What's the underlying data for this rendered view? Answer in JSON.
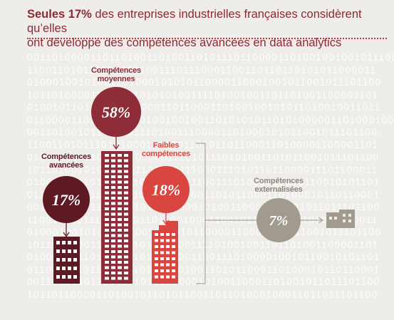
{
  "title": {
    "line1_prefix": "Seules 17% ",
    "line1_rest": "des entreprises industrielles françaises considèrent qu’elles",
    "line2": "ont développé des compétences avancées en data analytics"
  },
  "binary_text": [
    "00110100001101101001101001101011101100001101001001001011100",
    "11001101011100100010011101110001100110110110101011000011",
    "01000100101001101000101010110000110001001011001011101100",
    "10110100001101101101010100111101001001101101001100001101",
    "01001011010101101000011011000110100100101011010010011011",
    "01100001101100101101001001001101010101101010000011010001000",
    "00110100101100110111010011100001101000101011001011101100",
    "11001101011101010001101001101011011000110100001100001101",
    "01000010011010101000001110101110101001101011001011101100",
    "10110100101010010110101011100011101011011000011101100011",
    "01000110110101101101010000110011101000010010110010101101",
    "01100001101100101101001001001101011000110100010110110001",
    "00110100101100110101010100010100110001101001011011101100",
    "11001101011100010011011001000110010110110110101011000011",
    "01000100101001101000101010110000110001001011001011101100",
    "10110100001101101101010100111101001001101101001100001101",
    "01000110110101101101010000110011101000010010110010101101",
    "01100001101100101101001001001101011000110100010110110001",
    "00110100101100110101010100010100110001101001011011101100",
    "10110110000110100101101011001101101000100011011011101100"
  ],
  "colors": {
    "background": "#efedea",
    "title": "#8a2a32",
    "moyennes": "#8e2c37",
    "avancees": "#5e1a22",
    "faibles": "#d9453f",
    "externalisees": "#a19a8e"
  },
  "chart_data": {
    "type": "infographic-bubbles",
    "title": "Seules 17% des entreprises industrielles françaises considèrent qu’elles ont développé des compétences avancées en data analytics",
    "categories": [
      "Compétences avancées",
      "Compétences moyennes",
      "Faibles compétences",
      "Compétences externalisées"
    ],
    "values": [
      17,
      58,
      18,
      7
    ],
    "labels": [
      "17%",
      "58%",
      "18%",
      "7%"
    ],
    "items": [
      {
        "label_lines": [
          "Compétences",
          "avancées"
        ],
        "value": 17,
        "text": "17%",
        "color": "#5e1a22",
        "icon": "building-icon"
      },
      {
        "label_lines": [
          "Compétences",
          "moyennes"
        ],
        "value": 58,
        "text": "58%",
        "color": "#8e2c37",
        "icon": "skyscraper-icon"
      },
      {
        "label_lines": [
          "Faibles",
          "compétences"
        ],
        "value": 18,
        "text": "18%",
        "color": "#d9453f",
        "icon": "building-icon"
      },
      {
        "label_lines": [
          "Compétences",
          "externalisées"
        ],
        "value": 7,
        "text": "7%",
        "color": "#a19a8e",
        "icon": "small-building-icon"
      }
    ]
  }
}
